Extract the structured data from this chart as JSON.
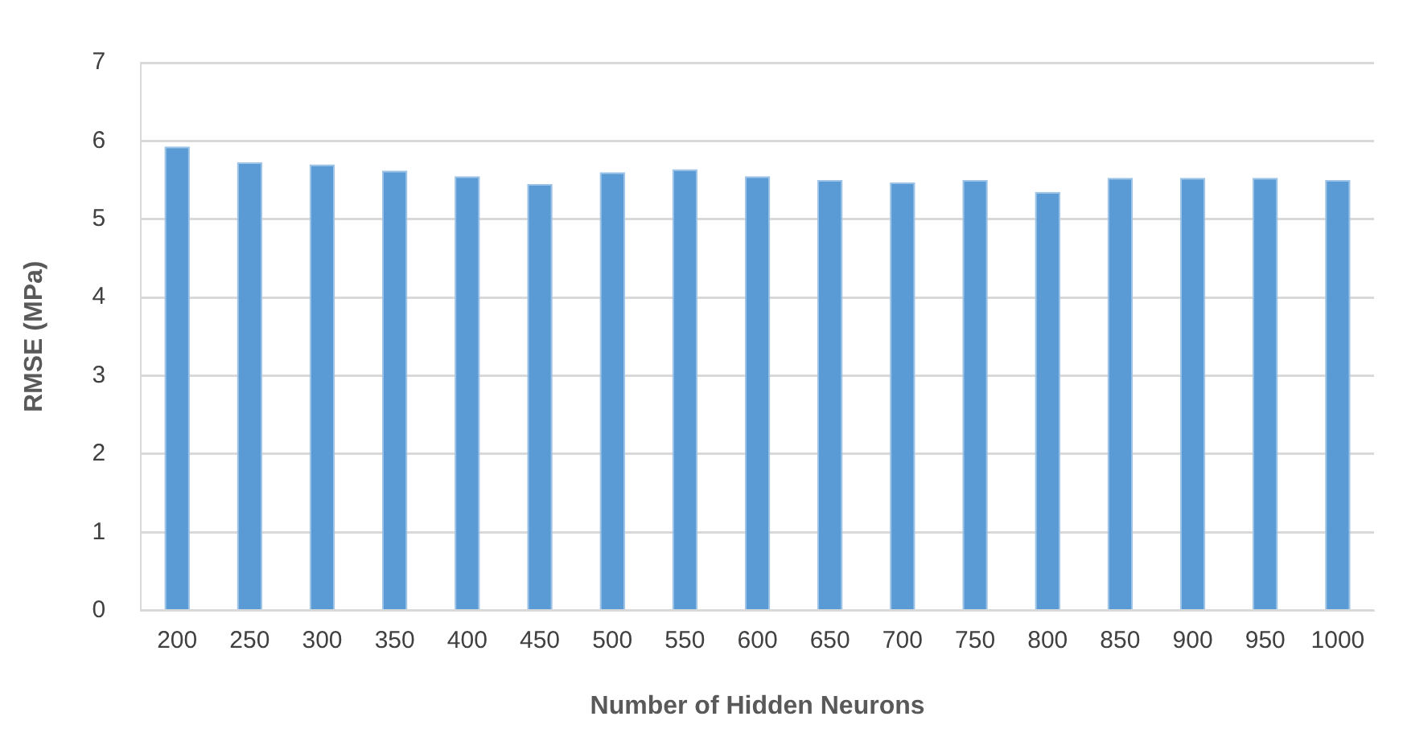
{
  "chart_data": {
    "type": "bar",
    "xlabel": "Number of Hidden Neurons",
    "ylabel": "RMSE (MPa)",
    "categories": [
      "200",
      "250",
      "300",
      "350",
      "400",
      "450",
      "500",
      "550",
      "600",
      "650",
      "700",
      "750",
      "800",
      "850",
      "900",
      "950",
      "1000"
    ],
    "values": [
      5.93,
      5.73,
      5.7,
      5.62,
      5.55,
      5.45,
      5.6,
      5.64,
      5.55,
      5.5,
      5.47,
      5.5,
      5.35,
      5.53,
      5.53,
      5.53,
      5.5
    ],
    "color": "#5b9bd5",
    "ylim": [
      0,
      7
    ],
    "yticks": [
      0,
      1,
      2,
      3,
      4,
      5,
      6,
      7
    ],
    "grid": "y",
    "legend": false
  }
}
